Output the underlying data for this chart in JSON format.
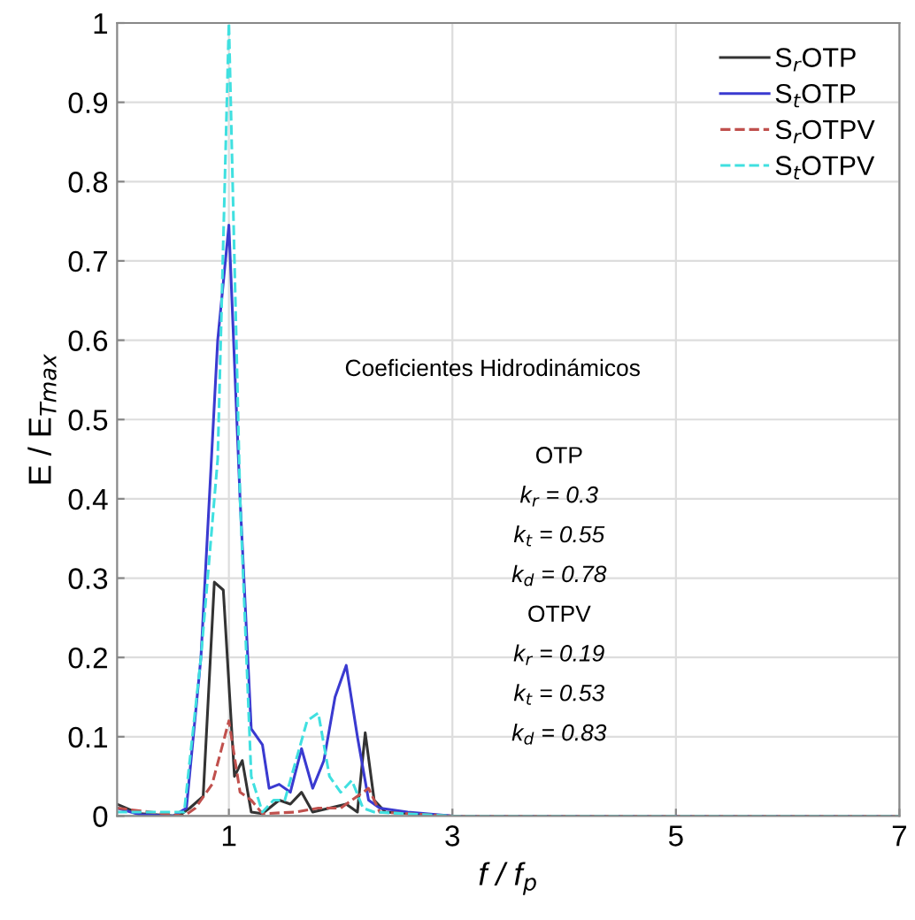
{
  "chart_data": {
    "type": "line",
    "xlabel": "f / f$_{p}$",
    "ylabel": "E / E$_{Tmax}$",
    "xlim": [
      0,
      7
    ],
    "xticks": [
      1,
      3,
      5,
      7
    ],
    "ylim": [
      0,
      1
    ],
    "yticks": [
      0,
      0.1,
      0.2,
      0.3,
      0.4,
      0.5,
      0.6,
      0.7,
      0.8,
      0.9,
      1
    ],
    "grid": true,
    "legend": "top right",
    "marker": "none",
    "annotations": [
      "Coeficientes Hidrodinámicos",
      "OTP",
      "k$_{r}$ = 0.3",
      "k$_{t}$ = 0.55",
      "k$_{d}$ = 0.78",
      "OTPV",
      "k$_{r}$ = 0.19",
      "k$_{t}$ = 0.53",
      "k$_{d}$ = 0.83"
    ],
    "series": [
      {
        "name": "S$_{r}$OTP",
        "color": "#333333",
        "line_style": "solid",
        "x": [
          0,
          0.2,
          0.55,
          0.65,
          0.77,
          0.87,
          0.95,
          1.05,
          1.12,
          1.2,
          1.3,
          1.45,
          1.55,
          1.65,
          1.75,
          1.9,
          2.05,
          2.15,
          2.22,
          2.3,
          2.4,
          3,
          7
        ],
        "values": [
          0.015,
          0.003,
          0,
          0.01,
          0.025,
          0.295,
          0.285,
          0.05,
          0.07,
          0.005,
          0.003,
          0.02,
          0.015,
          0.03,
          0.005,
          0.01,
          0.015,
          0.005,
          0.105,
          0.02,
          0.005,
          0,
          0
        ]
      },
      {
        "name": "S$_{t}$OTP",
        "color": "#3a3ad0",
        "line_style": "solid",
        "x": [
          0,
          0.2,
          0.5,
          0.62,
          0.75,
          0.9,
          1.0,
          1.1,
          1.2,
          1.3,
          1.36,
          1.45,
          1.55,
          1.65,
          1.75,
          1.85,
          1.95,
          2.05,
          2.15,
          2.25,
          2.35,
          2.6,
          3,
          7
        ],
        "values": [
          0.01,
          0.002,
          0,
          0.01,
          0.2,
          0.6,
          0.745,
          0.4,
          0.11,
          0.09,
          0.035,
          0.04,
          0.03,
          0.085,
          0.035,
          0.07,
          0.15,
          0.19,
          0.1,
          0.02,
          0.01,
          0.005,
          0,
          0
        ]
      },
      {
        "name": "S$_{r}$OTPV",
        "color": "#c0504d",
        "line_style": "dashed",
        "x": [
          0,
          0.6,
          0.7,
          0.85,
          1.0,
          1.1,
          1.2,
          1.3,
          1.6,
          1.8,
          2.0,
          2.1,
          2.25,
          2.35,
          3,
          7
        ],
        "values": [
          0.01,
          0,
          0.01,
          0.04,
          0.12,
          0.03,
          0.02,
          0.003,
          0.005,
          0.01,
          0.01,
          0.02,
          0.035,
          0.005,
          0,
          0
        ]
      },
      {
        "name": "S$_{t}$OTPV",
        "color": "#40e0e0",
        "line_style": "dashed",
        "x": [
          0,
          0.6,
          0.75,
          0.9,
          1.0,
          1.1,
          1.2,
          1.3,
          1.4,
          1.5,
          1.6,
          1.7,
          1.8,
          1.9,
          2.0,
          2.1,
          2.2,
          2.3,
          3,
          7
        ],
        "values": [
          0.005,
          0.005,
          0.2,
          0.45,
          1.0,
          0.4,
          0.05,
          0.005,
          0.02,
          0.02,
          0.07,
          0.12,
          0.13,
          0.05,
          0.03,
          0.045,
          0.01,
          0.005,
          0,
          0
        ]
      }
    ]
  }
}
